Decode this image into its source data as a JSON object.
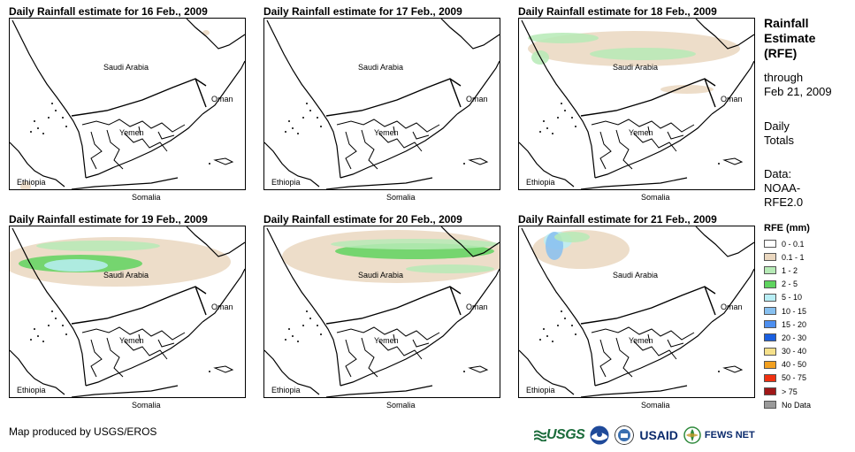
{
  "panels": [
    {
      "title": "Daily Rainfall estimate for 16 Feb., 2009"
    },
    {
      "title": "Daily Rainfall estimate for 17 Feb., 2009"
    },
    {
      "title": "Daily Rainfall estimate for 18 Feb., 2009"
    },
    {
      "title": "Daily Rainfall estimate for 19 Feb., 2009"
    },
    {
      "title": "Daily Rainfall estimate for 20 Feb., 2009"
    },
    {
      "title": "Daily Rainfall estimate for 21 Feb., 2009"
    }
  ],
  "country_labels": {
    "saudi": "Saudi Arabia",
    "oman": "Oman",
    "yemen": "Yemen",
    "ethiopia": "Ethiopia",
    "somalia": "Somalia"
  },
  "sidebar": {
    "title_line1": "Rainfall",
    "title_line2": "Estimate",
    "title_line3": "(RFE)",
    "through": "through",
    "date": "Feb 21, 2009",
    "daily": "Daily",
    "totals": "Totals",
    "data_label": "Data:",
    "data_source1": "NOAA-",
    "data_source2": "RFE2.0"
  },
  "legend": {
    "title": "RFE (mm)",
    "items": [
      {
        "label": "0 - 0.1",
        "color": "#ffffff"
      },
      {
        "label": "0.1 - 1",
        "color": "#ead7bf"
      },
      {
        "label": "1 - 2",
        "color": "#b6eab6"
      },
      {
        "label": "2 - 5",
        "color": "#5fd45f"
      },
      {
        "label": "5 - 10",
        "color": "#b8eef5"
      },
      {
        "label": "10 - 15",
        "color": "#87c0f0"
      },
      {
        "label": "15 - 20",
        "color": "#4d8ff0"
      },
      {
        "label": "20 - 30",
        "color": "#1a5fe0"
      },
      {
        "label": "30 - 40",
        "color": "#f5e08a"
      },
      {
        "label": "40 - 50",
        "color": "#f2a020"
      },
      {
        "label": "50 - 75",
        "color": "#f03010"
      },
      {
        "label": "> 75",
        "color": "#a01818"
      },
      {
        "label": "No Data",
        "color": "#9a9a9a"
      }
    ]
  },
  "credit": "Map produced by USGS/EROS",
  "logos": {
    "usgs": "USGS",
    "usaid": "USAID",
    "fews": "FEWS NET"
  }
}
